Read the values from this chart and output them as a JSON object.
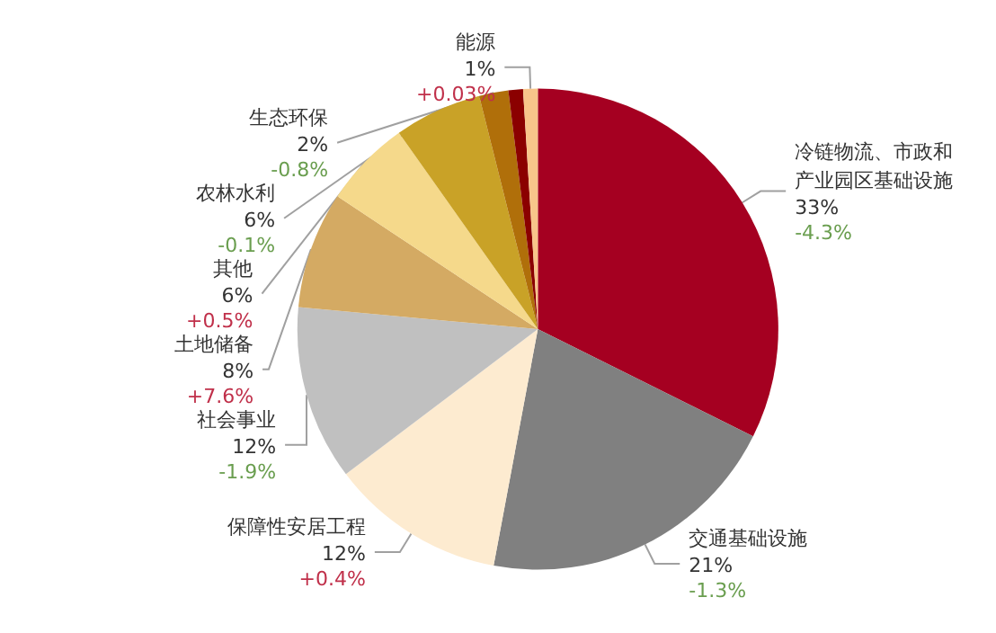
{
  "chart_data": {
    "type": "pie",
    "categories": [
      "冷链物流、市政和产业园区基础设施",
      "交通基础设施",
      "保障性安居工程",
      "社会事业",
      "土地储备",
      "其他",
      "农林水利",
      "生态环保",
      null,
      "能源"
    ],
    "values": [
      33,
      21,
      12,
      12,
      8,
      6,
      6,
      2,
      1,
      1
    ],
    "colors": [
      "#a50021",
      "#808080",
      "#fdebd0",
      "#c0c0c0",
      "#d4aa63",
      "#f5d98b",
      "#c9a227",
      "#b06f0a",
      "#8b0000",
      "#f8c58a"
    ],
    "value_labels": [
      "33%\n-4.3%",
      "21%\n-1.3%",
      "12%\n+0.4%",
      "12%\n-1.9%",
      "8%\n+7.6%",
      "6%\n+0.5%",
      "6%\n-0.1%",
      "2%\n-0.8%",
      null,
      "1%\n+0.03%"
    ]
  }
}
